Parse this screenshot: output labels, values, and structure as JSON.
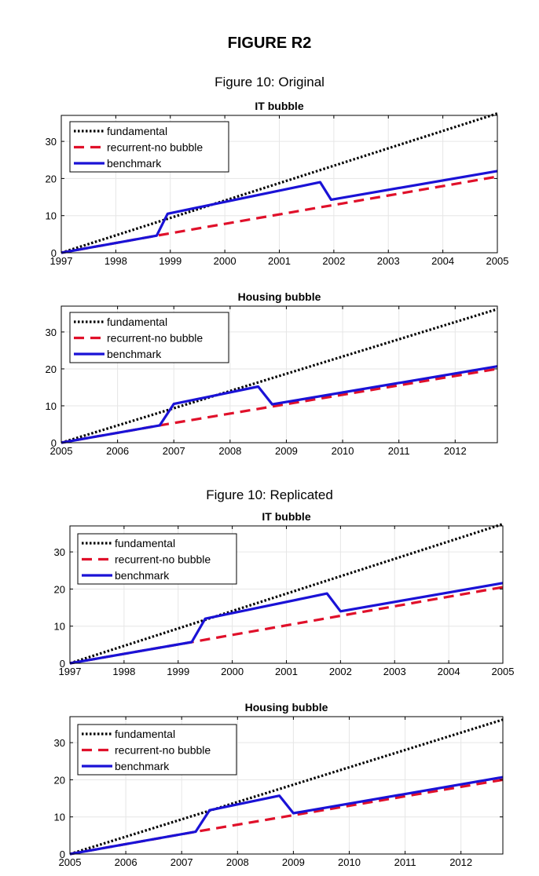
{
  "page_title": "FIGURE R2",
  "sections": [
    {
      "title": "Figure 10: Original"
    },
    {
      "title": "Figure 10: Replicated"
    }
  ],
  "colors": {
    "fundamental": "#000000",
    "recurrent": "#e0102a",
    "benchmark": "#1a12d6",
    "grid": "#e6e6e6"
  },
  "chart_data": [
    {
      "type": "line",
      "title": "IT bubble",
      "xlim": [
        1997,
        2005
      ],
      "ylim": [
        0,
        37
      ],
      "xticks": [
        1997,
        1998,
        1999,
        2000,
        2001,
        2002,
        2003,
        2004,
        2005
      ],
      "yticks": [
        0,
        10,
        20,
        30
      ],
      "grid": true,
      "legend": "top-left",
      "series": [
        {
          "name": "fundamental",
          "style": "dotted",
          "points": [
            [
              1997,
              0
            ],
            [
              2005,
              37.5
            ]
          ]
        },
        {
          "name": "recurrent-no bubble",
          "style": "dashed",
          "points": [
            [
              1997,
              0
            ],
            [
              1998.75,
              4.6
            ],
            [
              2005,
              20.5
            ]
          ]
        },
        {
          "name": "benchmark",
          "style": "solid",
          "points": [
            [
              1997,
              0
            ],
            [
              1998.75,
              4.6
            ],
            [
              1998.95,
              10.5
            ],
            [
              2001.75,
              19.0
            ],
            [
              2001.95,
              14.3
            ],
            [
              2005,
              22.0
            ]
          ]
        }
      ]
    },
    {
      "type": "line",
      "title": "Housing bubble",
      "xlim": [
        2005,
        2012.75
      ],
      "ylim": [
        0,
        37
      ],
      "xticks": [
        2005,
        2006,
        2007,
        2008,
        2009,
        2010,
        2011,
        2012
      ],
      "yticks": [
        0,
        10,
        20,
        30
      ],
      "grid": true,
      "legend": "top-left",
      "series": [
        {
          "name": "fundamental",
          "style": "dotted",
          "points": [
            [
              2005,
              0
            ],
            [
              2012.75,
              36.2
            ]
          ]
        },
        {
          "name": "recurrent-no bubble",
          "style": "dashed",
          "points": [
            [
              2005,
              0
            ],
            [
              2006.75,
              4.7
            ],
            [
              2012.75,
              20.0
            ]
          ]
        },
        {
          "name": "benchmark",
          "style": "solid",
          "points": [
            [
              2005,
              0
            ],
            [
              2006.75,
              4.7
            ],
            [
              2007.0,
              10.5
            ],
            [
              2008.5,
              15.2
            ],
            [
              2008.75,
              10.4
            ],
            [
              2012.75,
              20.7
            ]
          ]
        }
      ]
    },
    {
      "type": "line",
      "title": "IT bubble",
      "xlim": [
        1997,
        2005
      ],
      "ylim": [
        0,
        37
      ],
      "xticks": [
        1997,
        1998,
        1999,
        2000,
        2001,
        2002,
        2003,
        2004,
        2005
      ],
      "yticks": [
        0,
        10,
        20,
        30
      ],
      "grid": true,
      "legend": "top-left",
      "series": [
        {
          "name": "fundamental",
          "style": "dotted",
          "points": [
            [
              1997,
              0
            ],
            [
              2005,
              37.5
            ]
          ]
        },
        {
          "name": "recurrent-no bubble",
          "style": "dashed",
          "points": [
            [
              1997,
              0
            ],
            [
              1999.25,
              5.7
            ],
            [
              2005,
              20.5
            ]
          ]
        },
        {
          "name": "benchmark",
          "style": "solid",
          "points": [
            [
              1997,
              0
            ],
            [
              1999.25,
              5.7
            ],
            [
              1999.5,
              12.0
            ],
            [
              2001.75,
              18.8
            ],
            [
              2002.0,
              14.0
            ],
            [
              2005,
              21.6
            ]
          ]
        }
      ]
    },
    {
      "type": "line",
      "title": "Housing bubble",
      "xlim": [
        2005,
        2012.75
      ],
      "ylim": [
        0,
        37
      ],
      "xticks": [
        2005,
        2006,
        2007,
        2008,
        2009,
        2010,
        2011,
        2012
      ],
      "yticks": [
        0,
        10,
        20,
        30
      ],
      "grid": true,
      "legend": "top-left",
      "series": [
        {
          "name": "fundamental",
          "style": "dotted",
          "points": [
            [
              2005,
              0
            ],
            [
              2012.75,
              36.2
            ]
          ]
        },
        {
          "name": "recurrent-no bubble",
          "style": "dashed",
          "points": [
            [
              2005,
              0
            ],
            [
              2007.25,
              6.0
            ],
            [
              2012.75,
              20.0
            ]
          ]
        },
        {
          "name": "benchmark",
          "style": "solid",
          "points": [
            [
              2005,
              0
            ],
            [
              2007.25,
              6.0
            ],
            [
              2007.5,
              11.8
            ],
            [
              2008.75,
              15.7
            ],
            [
              2009.0,
              11.0
            ],
            [
              2012.75,
              20.7
            ]
          ]
        }
      ]
    }
  ]
}
